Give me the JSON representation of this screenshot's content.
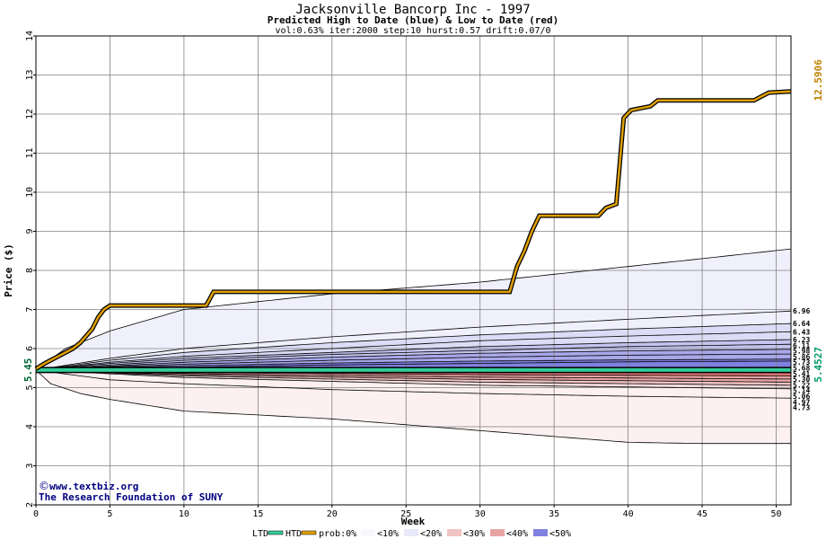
{
  "chart_data": {
    "type": "line",
    "title": "Jacksonville Bancorp Inc - 1997",
    "subtitle": "Predicted High to Date (blue) &  Low to Date (red)",
    "params": "vol:0.63% iter:2000 step:10 hurst:0.57 drift:0.07/0",
    "xlabel": "Week",
    "ylabel": "Price ($)",
    "xlim": [
      0,
      51
    ],
    "ylim": [
      2,
      14
    ],
    "x_ticks": [
      0,
      5,
      10,
      15,
      20,
      25,
      30,
      35,
      40,
      45,
      50
    ],
    "y_ticks": [
      2,
      3,
      4,
      5,
      6,
      7,
      8,
      9,
      10,
      11,
      12,
      13,
      14
    ],
    "grid": true,
    "start_price_label": "5.45",
    "actual_high_label": "12.5906",
    "actual_low_label": "5.4527",
    "right_labels": [
      "6.96",
      "6.64",
      "6.43",
      "6.23",
      "6.11",
      "5.98",
      "5.86",
      "5.73",
      "5.68",
      "5.41",
      "5.30",
      "5.22",
      "5.14",
      "5.06",
      "4.97",
      "4.73"
    ],
    "colors": {
      "high_line": "#e0a000",
      "low_line": "#33cc99",
      "band_high_10": "#f0f0fc",
      "band_high_20": "#dcdcf6",
      "band_high_30": "#c4c4f0",
      "band_high_40": "#a8a8ea",
      "band_high_50": "#8080e0",
      "band_low_10": "#fcf0f0",
      "band_low_20": "#f6dcdc",
      "band_low_30": "#f0c4c4",
      "band_low_40": "#e8a4a4",
      "band_low_50": "#e07070",
      "credit": "#000080"
    },
    "series": [
      {
        "name": "HTD",
        "points": [
          [
            0,
            5.48
          ],
          [
            0.5,
            5.6
          ],
          [
            1,
            5.7
          ],
          [
            1.5,
            5.8
          ],
          [
            2,
            5.9
          ],
          [
            2.5,
            6.0
          ],
          [
            3,
            6.15
          ],
          [
            3.8,
            6.5
          ],
          [
            4.2,
            6.8
          ],
          [
            4.6,
            7.0
          ],
          [
            5,
            7.1
          ],
          [
            11.5,
            7.1
          ],
          [
            12,
            7.45
          ],
          [
            32,
            7.45
          ],
          [
            32.5,
            8.1
          ],
          [
            33,
            8.5
          ],
          [
            33.5,
            9.0
          ],
          [
            34,
            9.4
          ],
          [
            38,
            9.4
          ],
          [
            38.5,
            9.6
          ],
          [
            39.2,
            9.7
          ],
          [
            39.7,
            11.9
          ],
          [
            40.2,
            12.1
          ],
          [
            41.5,
            12.2
          ],
          [
            42,
            12.35
          ],
          [
            48.5,
            12.35
          ],
          [
            49,
            12.45
          ],
          [
            49.5,
            12.55
          ],
          [
            51,
            12.58
          ]
        ]
      },
      {
        "name": "LTD",
        "points": [
          [
            0,
            5.45
          ],
          [
            51,
            5.45
          ]
        ]
      }
    ],
    "bands_upper": [
      [
        [
          0,
          5.45
        ],
        [
          2,
          6.0
        ],
        [
          5,
          6.45
        ],
        [
          10,
          7.0
        ],
        [
          15,
          7.2
        ],
        [
          20,
          7.4
        ],
        [
          25,
          7.55
        ],
        [
          30,
          7.7
        ],
        [
          35,
          7.9
        ],
        [
          40,
          8.1
        ],
        [
          45,
          8.3
        ],
        [
          51,
          8.55
        ]
      ],
      [
        [
          0,
          5.45
        ],
        [
          5,
          5.75
        ],
        [
          10,
          6.0
        ],
        [
          20,
          6.3
        ],
        [
          30,
          6.55
        ],
        [
          40,
          6.75
        ],
        [
          51,
          6.96
        ]
      ],
      [
        [
          0,
          5.45
        ],
        [
          5,
          5.7
        ],
        [
          10,
          5.9
        ],
        [
          20,
          6.15
        ],
        [
          30,
          6.35
        ],
        [
          40,
          6.5
        ],
        [
          51,
          6.64
        ]
      ],
      [
        [
          0,
          5.45
        ],
        [
          5,
          5.65
        ],
        [
          10,
          5.8
        ],
        [
          20,
          6.0
        ],
        [
          30,
          6.2
        ],
        [
          40,
          6.32
        ],
        [
          51,
          6.43
        ]
      ],
      [
        [
          0,
          5.45
        ],
        [
          5,
          5.62
        ],
        [
          10,
          5.75
        ],
        [
          20,
          5.9
        ],
        [
          30,
          6.05
        ],
        [
          40,
          6.15
        ],
        [
          51,
          6.23
        ]
      ],
      [
        [
          0,
          5.45
        ],
        [
          5,
          5.58
        ],
        [
          10,
          5.7
        ],
        [
          20,
          5.85
        ],
        [
          30,
          5.95
        ],
        [
          40,
          6.05
        ],
        [
          51,
          6.11
        ]
      ],
      [
        [
          0,
          5.45
        ],
        [
          5,
          5.55
        ],
        [
          10,
          5.65
        ],
        [
          20,
          5.78
        ],
        [
          30,
          5.88
        ],
        [
          40,
          5.94
        ],
        [
          51,
          5.98
        ]
      ],
      [
        [
          0,
          5.45
        ],
        [
          5,
          5.53
        ],
        [
          10,
          5.6
        ],
        [
          20,
          5.7
        ],
        [
          30,
          5.78
        ],
        [
          40,
          5.83
        ],
        [
          51,
          5.86
        ]
      ],
      [
        [
          0,
          5.45
        ],
        [
          5,
          5.51
        ],
        [
          10,
          5.56
        ],
        [
          20,
          5.63
        ],
        [
          30,
          5.68
        ],
        [
          40,
          5.71
        ],
        [
          51,
          5.73
        ]
      ],
      [
        [
          0,
          5.45
        ],
        [
          10,
          5.52
        ],
        [
          20,
          5.58
        ],
        [
          30,
          5.62
        ],
        [
          40,
          5.66
        ],
        [
          51,
          5.68
        ]
      ]
    ],
    "bands_lower": [
      [
        [
          0,
          5.45
        ],
        [
          10,
          5.43
        ],
        [
          30,
          5.42
        ],
        [
          51,
          5.41
        ]
      ],
      [
        [
          0,
          5.45
        ],
        [
          10,
          5.39
        ],
        [
          30,
          5.33
        ],
        [
          51,
          5.3
        ]
      ],
      [
        [
          0,
          5.45
        ],
        [
          10,
          5.36
        ],
        [
          30,
          5.27
        ],
        [
          51,
          5.22
        ]
      ],
      [
        [
          0,
          5.45
        ],
        [
          10,
          5.33
        ],
        [
          30,
          5.21
        ],
        [
          51,
          5.14
        ]
      ],
      [
        [
          0,
          5.45
        ],
        [
          10,
          5.3
        ],
        [
          30,
          5.14
        ],
        [
          51,
          5.06
        ]
      ],
      [
        [
          0,
          5.45
        ],
        [
          10,
          5.26
        ],
        [
          30,
          5.06
        ],
        [
          51,
          4.97
        ]
      ],
      [
        [
          0,
          5.45
        ],
        [
          5,
          5.2
        ],
        [
          10,
          5.1
        ],
        [
          20,
          4.95
        ],
        [
          30,
          4.85
        ],
        [
          40,
          4.78
        ],
        [
          51,
          4.73
        ]
      ],
      [
        [
          0,
          5.45
        ],
        [
          1,
          5.1
        ],
        [
          3,
          4.85
        ],
        [
          5,
          4.7
        ],
        [
          10,
          4.4
        ],
        [
          15,
          4.3
        ],
        [
          20,
          4.2
        ],
        [
          25,
          4.05
        ],
        [
          30,
          3.9
        ],
        [
          35,
          3.75
        ],
        [
          40,
          3.6
        ],
        [
          45,
          3.57
        ],
        [
          51,
          3.57
        ]
      ]
    ]
  },
  "credit": {
    "copyright_symbol": "©",
    "site": "www.textbiz.org",
    "org": "The Research Foundation of SUNY"
  },
  "legend": {
    "ltd": "LTD",
    "htd": "HTD",
    "prob": "prob:0%",
    "b10": "<10%",
    "b20": "<20%",
    "b30": "<30%",
    "b40": "<40%",
    "b50": "<50%"
  }
}
